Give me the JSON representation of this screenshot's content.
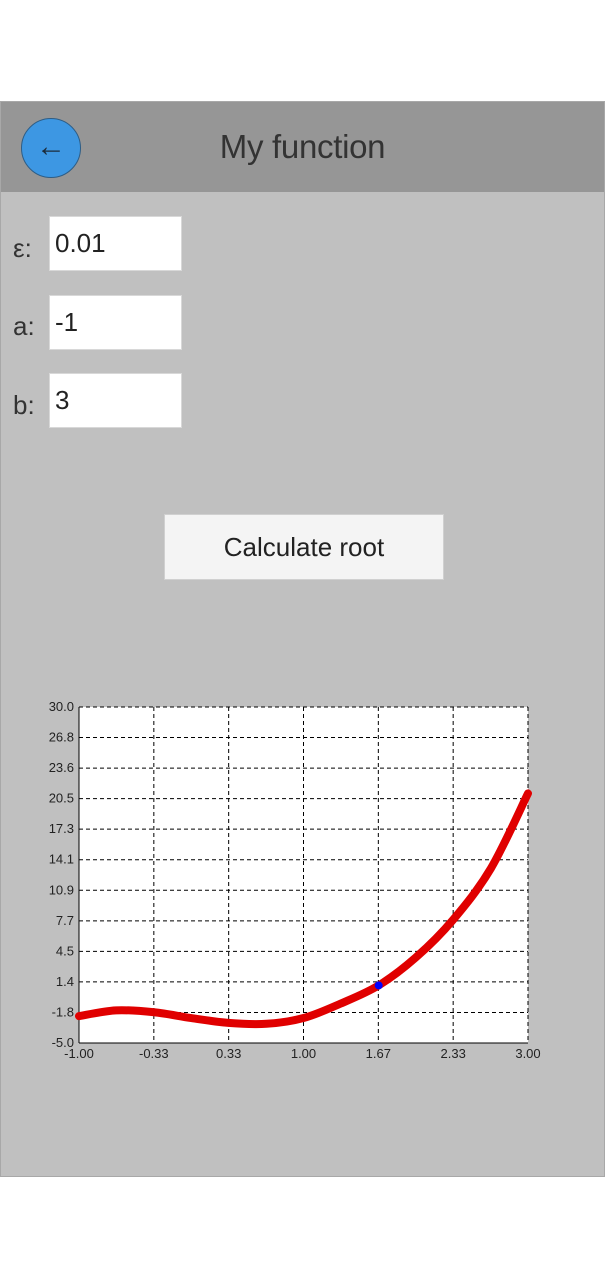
{
  "header": {
    "title": "My function",
    "back_icon": "←",
    "back_color": "#3d97e3"
  },
  "fields": {
    "epsilon": {
      "label": "ε:",
      "value": "0.01"
    },
    "a": {
      "label": "a:",
      "value": "-1"
    },
    "b": {
      "label": "b:",
      "value": "3"
    }
  },
  "actions": {
    "calculate_label": "Calculate root"
  },
  "chart_data": {
    "type": "line",
    "grid": true,
    "xlim": [
      -1.0,
      3.0
    ],
    "ylim": [
      -5.0,
      30.0
    ],
    "x_ticks": [
      "-1.00",
      "-0.33",
      "0.33",
      "1.00",
      "1.67",
      "2.33",
      "3.00"
    ],
    "y_ticks": [
      "-5.0",
      "-1.8",
      "1.4",
      "4.5",
      "7.7",
      "10.9",
      "14.1",
      "17.3",
      "20.5",
      "23.6",
      "26.8",
      "30.0"
    ],
    "series": [
      {
        "color": "#e00000",
        "x": [
          -1.0,
          -0.67,
          -0.33,
          0.0,
          0.33,
          0.67,
          1.0,
          1.33,
          1.67,
          2.0,
          2.33,
          2.67,
          3.0
        ],
        "y": [
          -2.2,
          -1.6,
          -1.8,
          -2.4,
          -2.9,
          -3.0,
          -2.4,
          -0.9,
          1.0,
          3.9,
          7.8,
          13.2,
          21.0
        ]
      }
    ],
    "root": {
      "x": 1.67,
      "y": 1.0,
      "color": "#0000ff"
    }
  }
}
